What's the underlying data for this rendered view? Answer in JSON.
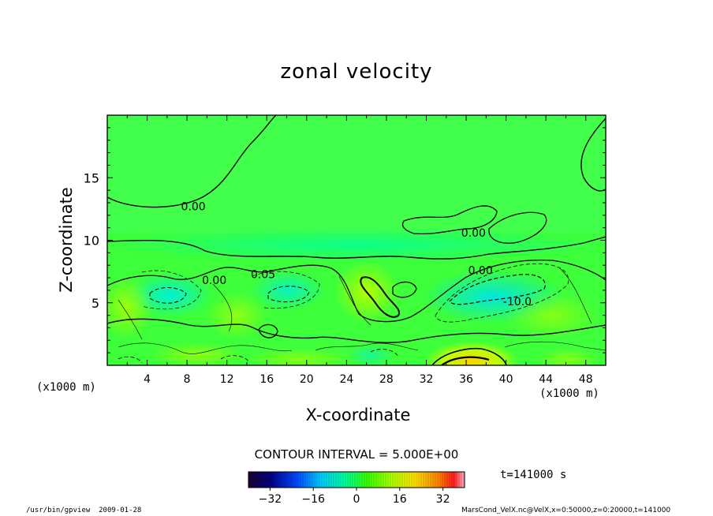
{
  "chart_data": {
    "type": "heatmap",
    "title": "zonal velocity",
    "xlabel": "X-coordinate",
    "ylabel": "Z-coordinate",
    "x_unit_label": "(x1000 m)",
    "x_ticks": [
      4,
      8,
      12,
      16,
      20,
      24,
      28,
      32,
      36,
      40,
      44,
      48
    ],
    "y_ticks": [
      5,
      10,
      15
    ],
    "xlim": [
      0,
      50
    ],
    "ylim": [
      0,
      20
    ],
    "grid": false,
    "contour_interval_text": "CONTOUR INTERVAL = 5.000E+00",
    "contour_labels": [
      {
        "text": "0.00",
        "x": 7.4,
        "y": 12.7
      },
      {
        "text": "0.00",
        "x": 35.5,
        "y": 10.6
      },
      {
        "text": "0.05",
        "x": 14.4,
        "y": 7.3
      },
      {
        "text": "0.00",
        "x": 9.5,
        "y": 6.8
      },
      {
        "text": "0.00",
        "x": 36.2,
        "y": 7.6
      },
      {
        "text": "-10.0",
        "x": 39.7,
        "y": 5.1
      }
    ],
    "colorbar": {
      "ticks": [
        -32,
        -16,
        0,
        16,
        32
      ],
      "range": [
        -40,
        40
      ],
      "colors": [
        "#1a0033",
        "#000080",
        "#0044ff",
        "#00c8ff",
        "#00ff99",
        "#33ff00",
        "#aaff00",
        "#ffe000",
        "#ff8000",
        "#ff1a1a",
        "#ffb3c6"
      ]
    },
    "time_label": "t=141000 s",
    "footer_left": "/usr/bin/gpview  2009-01-28",
    "footer_right": "MarsCond_VelX.nc@VelX,x=0:50000,z=0:20000,t=141000"
  }
}
